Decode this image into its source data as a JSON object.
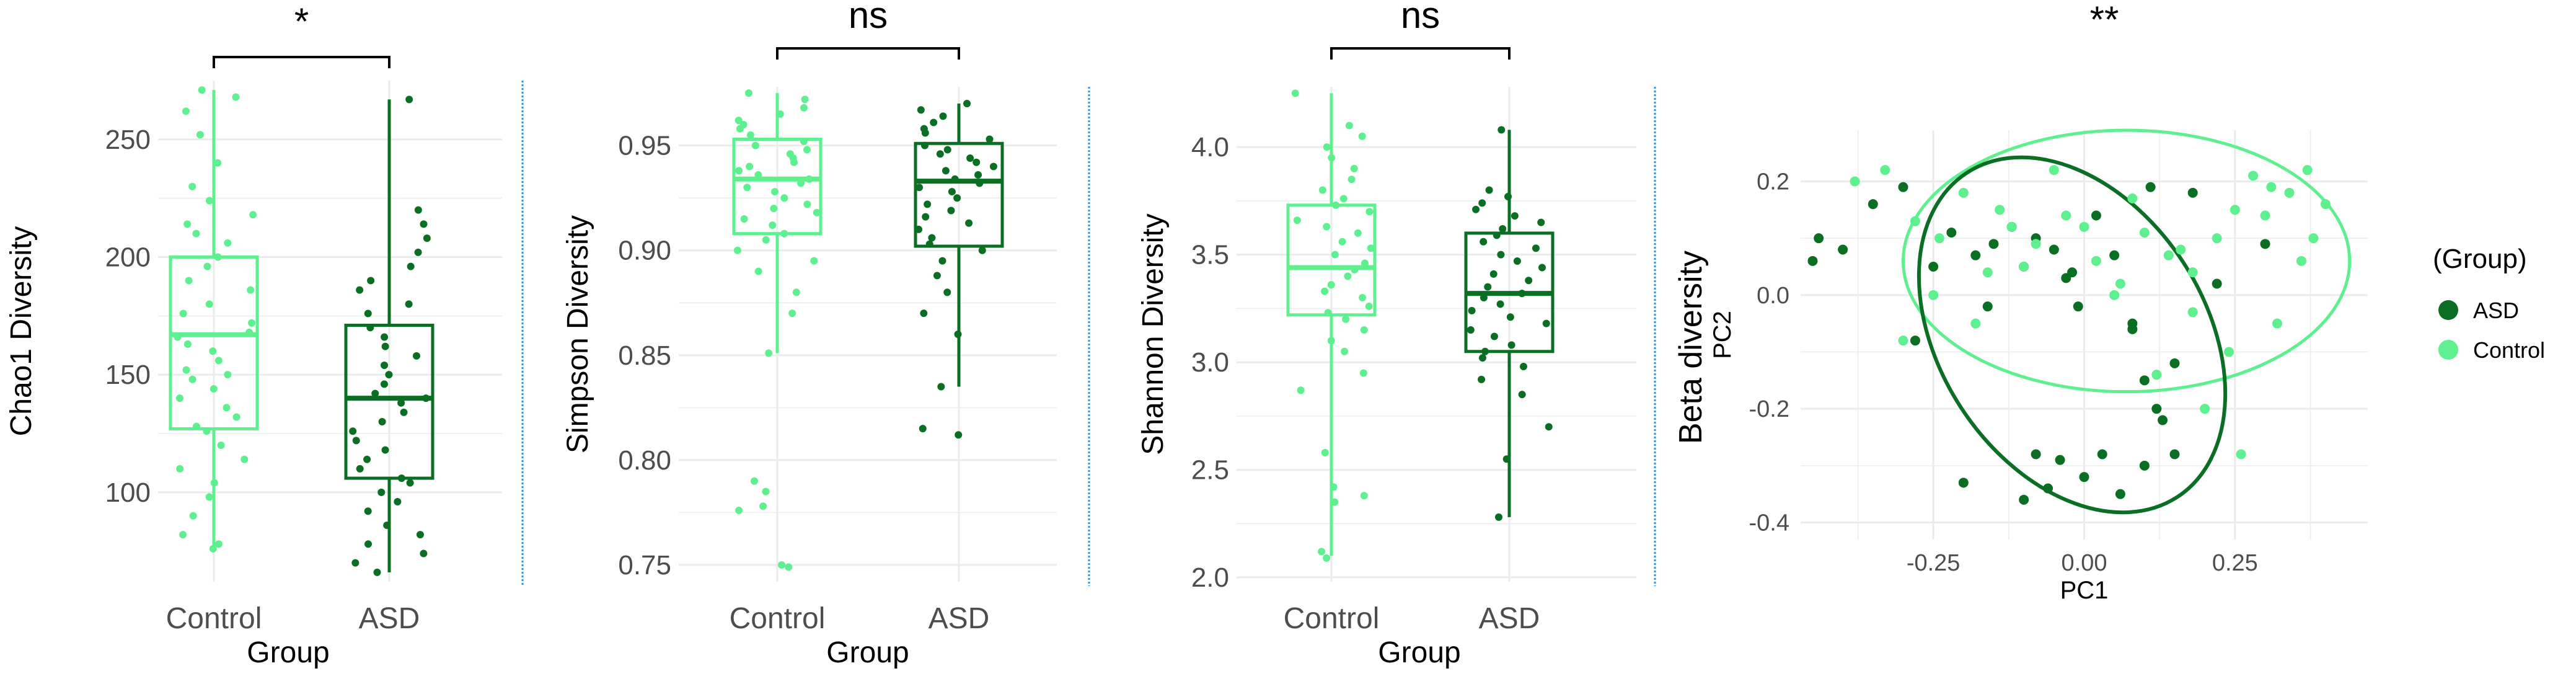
{
  "colors": {
    "control": "#5ef08f",
    "asd": "#0a6e23",
    "grid": "#ebebeb",
    "separator": "#3a8fd8"
  },
  "chart_data": [
    {
      "type": "box",
      "xlabel": "Group",
      "ylabel": "Chao1 Diversity",
      "categories": [
        "Control",
        "ASD"
      ],
      "ylim": [
        62,
        275
      ],
      "yticks": [
        100,
        150,
        200,
        250
      ],
      "significance": "*",
      "grid": true,
      "boxes": [
        {
          "group": "Control",
          "min": 76,
          "q1": 127,
          "median": 167,
          "q3": 200,
          "max": 271
        },
        {
          "group": "ASD",
          "min": 66,
          "q1": 106,
          "median": 140,
          "q3": 171,
          "max": 267
        }
      ],
      "points": {
        "Control": [
          76,
          78,
          82,
          90,
          98,
          104,
          110,
          114,
          120,
          126,
          128,
          132,
          136,
          140,
          144,
          148,
          150,
          152,
          156,
          160,
          163,
          166,
          168,
          172,
          176,
          180,
          186,
          190,
          196,
          200,
          206,
          210,
          214,
          218,
          224,
          230,
          240,
          252,
          262,
          268,
          271
        ],
        "ASD": [
          66,
          70,
          74,
          78,
          82,
          86,
          92,
          96,
          100,
          104,
          106,
          110,
          114,
          118,
          122,
          126,
          130,
          134,
          138,
          140,
          142,
          146,
          150,
          154,
          158,
          162,
          166,
          170,
          176,
          180,
          186,
          190,
          196,
          202,
          208,
          214,
          220,
          267
        ]
      }
    },
    {
      "type": "box",
      "xlabel": "Group",
      "ylabel": "Simpson Diversity",
      "categories": [
        "Control",
        "ASD"
      ],
      "ylim": [
        0.742,
        0.978
      ],
      "yticks": [
        0.75,
        0.8,
        0.85,
        0.9,
        0.95
      ],
      "ytick_labels": [
        "0.75",
        "0.80",
        "0.85",
        "0.90",
        "0.95"
      ],
      "significance": "ns",
      "grid": true,
      "boxes": [
        {
          "group": "Control",
          "min": 0.851,
          "q1": 0.908,
          "median": 0.934,
          "q3": 0.953,
          "max": 0.975
        },
        {
          "group": "ASD",
          "min": 0.835,
          "q1": 0.902,
          "median": 0.933,
          "q3": 0.951,
          "max": 0.97
        }
      ],
      "points": {
        "Control": [
          0.749,
          0.75,
          0.776,
          0.778,
          0.785,
          0.79,
          0.851,
          0.87,
          0.88,
          0.89,
          0.895,
          0.9,
          0.905,
          0.908,
          0.912,
          0.915,
          0.918,
          0.92,
          0.922,
          0.925,
          0.928,
          0.93,
          0.932,
          0.934,
          0.936,
          0.938,
          0.94,
          0.942,
          0.944,
          0.946,
          0.948,
          0.95,
          0.952,
          0.955,
          0.958,
          0.96,
          0.962,
          0.965,
          0.968,
          0.972,
          0.975
        ],
        "ASD": [
          0.812,
          0.815,
          0.835,
          0.86,
          0.87,
          0.88,
          0.888,
          0.895,
          0.9,
          0.903,
          0.906,
          0.91,
          0.913,
          0.916,
          0.919,
          0.922,
          0.925,
          0.928,
          0.93,
          0.932,
          0.934,
          0.936,
          0.938,
          0.94,
          0.942,
          0.944,
          0.946,
          0.948,
          0.95,
          0.953,
          0.956,
          0.958,
          0.961,
          0.964,
          0.967,
          0.97
        ]
      }
    },
    {
      "type": "box",
      "xlabel": "Group",
      "ylabel": "Shannon Diversity",
      "categories": [
        "Control",
        "ASD"
      ],
      "ylim": [
        1.98,
        4.28
      ],
      "yticks": [
        2.0,
        2.5,
        3.0,
        3.5,
        4.0
      ],
      "ytick_labels": [
        "2.0",
        "2.5",
        "3.0",
        "3.5",
        "4.0"
      ],
      "significance": "ns",
      "grid": true,
      "boxes": [
        {
          "group": "Control",
          "min": 2.1,
          "q1": 3.22,
          "median": 3.44,
          "q3": 3.73,
          "max": 4.25
        },
        {
          "group": "ASD",
          "min": 2.28,
          "q1": 3.05,
          "median": 3.32,
          "q3": 3.6,
          "max": 4.08
        }
      ],
      "points": {
        "Control": [
          2.09,
          2.12,
          2.35,
          2.38,
          2.42,
          2.58,
          2.87,
          2.95,
          3.05,
          3.1,
          3.15,
          3.2,
          3.23,
          3.26,
          3.3,
          3.33,
          3.36,
          3.4,
          3.43,
          3.46,
          3.5,
          3.53,
          3.56,
          3.6,
          3.63,
          3.66,
          3.7,
          3.73,
          3.76,
          3.8,
          3.85,
          3.9,
          3.95,
          4.0,
          4.05,
          4.1,
          4.25
        ],
        "ASD": [
          2.28,
          2.55,
          2.7,
          2.85,
          2.92,
          2.98,
          3.02,
          3.05,
          3.08,
          3.12,
          3.15,
          3.18,
          3.21,
          3.24,
          3.27,
          3.3,
          3.32,
          3.35,
          3.38,
          3.41,
          3.44,
          3.47,
          3.5,
          3.53,
          3.56,
          3.59,
          3.62,
          3.65,
          3.68,
          3.71,
          3.74,
          3.77,
          3.8,
          4.08
        ]
      }
    },
    {
      "type": "scatter",
      "title": "**",
      "ylabel_outer": "Beta diversity",
      "xlabel": "PC1",
      "ylabel": "PC2",
      "xlim": [
        -0.47,
        0.47
      ],
      "ylim": [
        -0.43,
        0.29
      ],
      "xticks": [
        -0.25,
        0.0,
        0.25
      ],
      "xtick_labels": [
        "-0.25",
        "0.00",
        "0.25"
      ],
      "yticks": [
        -0.4,
        -0.2,
        0.0,
        0.2
      ],
      "ytick_labels": [
        "-0.4",
        "-0.2",
        "0.0",
        "0.2"
      ],
      "grid": true,
      "legend": {
        "title": "(Group)",
        "placement": "right",
        "entries": [
          "ASD",
          "Control"
        ]
      },
      "ellipses": {
        "ASD": {
          "cx": -0.02,
          "cy": -0.07,
          "rx": 0.22,
          "ry": 0.34,
          "angle": -33
        },
        "Control": {
          "cx": 0.07,
          "cy": 0.06,
          "rx": 0.37,
          "ry": 0.23,
          "angle": 0
        }
      },
      "series": [
        {
          "name": "ASD",
          "x": [
            -0.45,
            -0.44,
            -0.4,
            -0.35,
            -0.3,
            -0.25,
            -0.22,
            -0.18,
            -0.15,
            -0.12,
            -0.1,
            -0.08,
            -0.05,
            -0.03,
            -0.01,
            0.02,
            0.05,
            0.08,
            0.1,
            0.12,
            0.15,
            0.18,
            -0.2,
            -0.08,
            -0.04,
            0.0,
            0.03,
            0.06,
            0.1,
            0.13,
            -0.1,
            -0.06,
            -0.02,
            0.08,
            0.15,
            0.22,
            0.3,
            -0.16,
            -0.28,
            0.11
          ],
          "y": [
            0.06,
            0.1,
            0.08,
            0.16,
            0.19,
            0.05,
            0.11,
            0.07,
            0.09,
            0.12,
            0.05,
            0.1,
            0.08,
            0.03,
            -0.02,
            0.14,
            0.07,
            -0.06,
            -0.15,
            -0.2,
            -0.28,
            0.18,
            -0.33,
            -0.28,
            -0.29,
            -0.32,
            -0.28,
            -0.35,
            -0.3,
            -0.22,
            -0.36,
            -0.34,
            0.04,
            -0.05,
            -0.12,
            0.02,
            0.09,
            -0.02,
            -0.08,
            0.19
          ],
          "color": "#0a6e23"
        },
        {
          "name": "Control",
          "x": [
            -0.38,
            -0.33,
            -0.28,
            -0.24,
            -0.2,
            -0.16,
            -0.12,
            -0.08,
            -0.03,
            0.02,
            0.06,
            0.1,
            0.14,
            0.18,
            0.22,
            0.25,
            0.28,
            0.31,
            0.34,
            0.37,
            0.4,
            -0.3,
            -0.25,
            -0.18,
            -0.1,
            0.0,
            0.05,
            0.12,
            0.2,
            0.26,
            0.32,
            0.38,
            -0.05,
            0.08,
            0.16,
            0.24,
            0.3,
            0.36,
            -0.14,
            0.18
          ],
          "y": [
            0.2,
            0.22,
            0.13,
            0.1,
            0.18,
            0.04,
            0.12,
            0.09,
            0.14,
            0.06,
            0.02,
            0.11,
            0.07,
            -0.03,
            0.1,
            0.15,
            0.21,
            0.19,
            0.18,
            0.22,
            0.16,
            -0.08,
            0.0,
            -0.05,
            0.05,
            0.12,
            0.0,
            -0.14,
            -0.2,
            -0.28,
            -0.05,
            0.1,
            0.22,
            0.17,
            0.08,
            -0.1,
            0.14,
            0.06,
            0.15,
            0.04
          ],
          "color": "#5ef08f"
        }
      ]
    }
  ]
}
